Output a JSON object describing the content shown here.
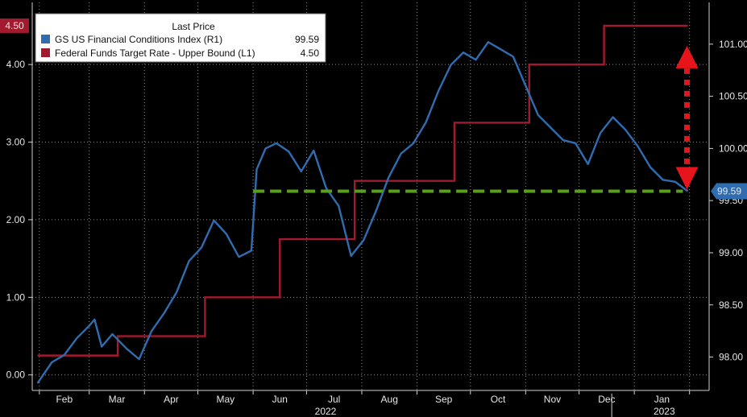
{
  "chart_data": {
    "type": "line",
    "legend": {
      "title": "Last Price",
      "placement": "top-left",
      "entries": [
        {
          "name": "GS US Financial Conditions Index  (R1)",
          "value": "99.59",
          "color": "#2f6db0"
        },
        {
          "name": "Federal Funds Target Rate - Upper Bound  (L1)",
          "value": "4.50",
          "color": "#a3192e"
        }
      ]
    },
    "x_axis": {
      "months": [
        "Feb",
        "Mar",
        "Apr",
        "May",
        "Jun",
        "Jul",
        "Aug",
        "Sep",
        "Oct",
        "Nov",
        "Dec",
        "Jan"
      ],
      "year_labels": [
        "2022",
        "2023"
      ]
    },
    "left_axis": {
      "ticks": [
        "0.00",
        "1.00",
        "2.00",
        "3.00",
        "4.00"
      ],
      "range": [
        -0.2,
        4.8
      ],
      "last_value_badge": "4.50"
    },
    "right_axis": {
      "ticks": [
        "98.00",
        "98.50",
        "99.00",
        "99.50",
        "100.00",
        "100.50",
        "101.00"
      ],
      "range": [
        97.68,
        101.4
      ],
      "last_value_badge": "99.59"
    },
    "grid": true,
    "series": [
      {
        "name": "Federal Funds Target Rate - Upper Bound  (L1)",
        "axis": "left",
        "color": "#a3192e",
        "x": [
          "2022-01-31",
          "2022-03-17",
          "2022-05-05",
          "2022-06-16",
          "2022-07-28",
          "2022-09-22",
          "2022-11-03",
          "2022-12-15",
          "2023-01-31"
        ],
        "values": [
          0.25,
          0.5,
          1.0,
          1.75,
          2.5,
          3.25,
          4.0,
          4.5,
          4.5
        ]
      },
      {
        "name": "GS US Financial Conditions Index  (R1)",
        "axis": "right",
        "color": "#2f6db0",
        "x": [
          "2022-01-31",
          "2022-02-08",
          "2022-02-15",
          "2022-02-22",
          "2022-03-01",
          "2022-03-04",
          "2022-03-08",
          "2022-03-14",
          "2022-03-22",
          "2022-03-29",
          "2022-04-05",
          "2022-04-12",
          "2022-04-19",
          "2022-04-26",
          "2022-05-03",
          "2022-05-10",
          "2022-05-17",
          "2022-05-24",
          "2022-05-31",
          "2022-06-03",
          "2022-06-08",
          "2022-06-14",
          "2022-06-21",
          "2022-06-28",
          "2022-07-05",
          "2022-07-12",
          "2022-07-19",
          "2022-07-26",
          "2022-08-02",
          "2022-08-09",
          "2022-08-16",
          "2022-08-23",
          "2022-08-30",
          "2022-09-06",
          "2022-09-13",
          "2022-09-20",
          "2022-09-27",
          "2022-10-04",
          "2022-10-11",
          "2022-10-18",
          "2022-10-25",
          "2022-11-01",
          "2022-11-08",
          "2022-11-15",
          "2022-11-22",
          "2022-11-29",
          "2022-12-06",
          "2022-12-13",
          "2022-12-20",
          "2022-12-27",
          "2023-01-03",
          "2023-01-10",
          "2023-01-17",
          "2023-01-24",
          "2023-01-31"
        ],
        "values": [
          97.75,
          97.95,
          98.02,
          98.18,
          98.3,
          98.36,
          98.1,
          98.22,
          98.08,
          97.98,
          98.25,
          98.42,
          98.62,
          98.92,
          99.05,
          99.31,
          99.18,
          98.96,
          99.02,
          99.8,
          100.0,
          100.05,
          99.97,
          99.78,
          99.98,
          99.62,
          99.45,
          98.97,
          99.12,
          99.4,
          99.72,
          99.95,
          100.05,
          100.25,
          100.55,
          100.8,
          100.92,
          100.85,
          101.02,
          100.95,
          100.88,
          100.6,
          100.32,
          100.2,
          100.08,
          100.05,
          99.85,
          100.15,
          100.3,
          100.18,
          100.02,
          99.82,
          99.7,
          99.68,
          99.59
        ]
      }
    ],
    "annotations": [
      {
        "type": "dashed-line",
        "color": "#5a9e1e",
        "axis": "right",
        "value": 99.59,
        "from": "2022-06-01",
        "to": "2023-01-31"
      },
      {
        "type": "double-arrow",
        "color": "#e8141c",
        "axis": "right",
        "from_value": 99.59,
        "to_value": 101.0,
        "x": "2023-02-05"
      }
    ]
  }
}
